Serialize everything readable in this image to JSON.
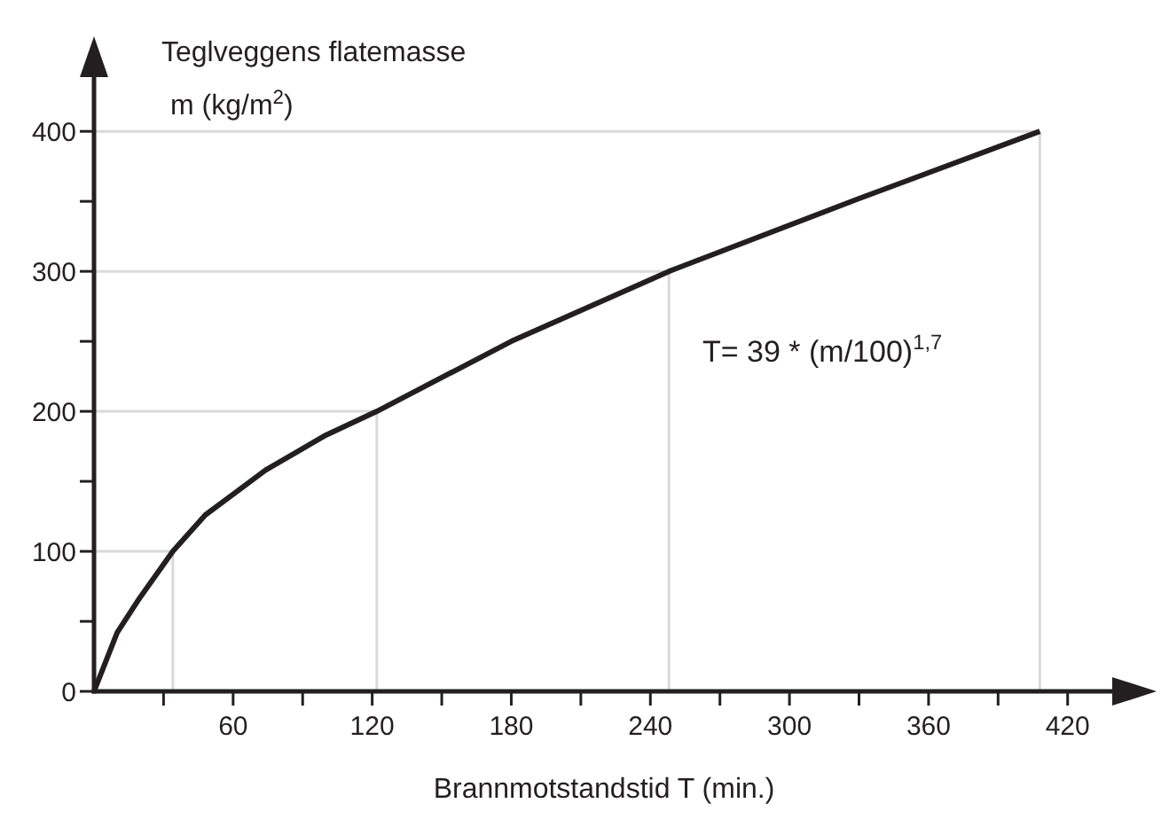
{
  "chart_data": {
    "type": "line",
    "xlabel": "Brannmotstandstid T (min.)",
    "ylabel": "Teglveggens flatemasse\nm  (kg/m$^{2}$)",
    "series": [
      {
        "color": "#231f20",
        "x": [
          0,
          10,
          19,
          34,
          48,
          74,
          100,
          122,
          180,
          248,
          330,
          408
        ],
        "values": [
          0,
          42,
          65,
          100,
          126,
          158,
          183,
          200,
          250,
          300,
          352,
          400
        ]
      },
      {
        "color": "#d9d9d9",
        "x": [
          0,
          34
        ],
        "values": [
          100,
          100
        ]
      },
      {
        "color": "#d9d9d9",
        "x": [
          0,
          122
        ],
        "values": [
          200,
          200
        ]
      },
      {
        "color": "#d9d9d9",
        "x": [
          0,
          248
        ],
        "values": [
          300,
          300
        ]
      },
      {
        "color": "#d9d9d9",
        "x": [
          0,
          408
        ],
        "values": [
          400,
          400
        ]
      },
      {
        "color": "#d9d9d9",
        "x": [
          34,
          34
        ],
        "values": [
          0,
          100
        ]
      },
      {
        "color": "#d9d9d9",
        "x": [
          122,
          122
        ],
        "values": [
          0,
          200
        ]
      },
      {
        "color": "#d9d9d9",
        "x": [
          248,
          248
        ],
        "values": [
          0,
          300
        ]
      },
      {
        "color": "#d9d9d9",
        "x": [
          408,
          408
        ],
        "values": [
          0,
          400
        ]
      }
    ],
    "marker": "none",
    "line_style": "solid",
    "xlim": [
      0,
      440
    ],
    "ylim": [
      0,
      440
    ],
    "xticks": [
      {
        "value": 30,
        "label": null
      },
      60,
      {
        "value": 90,
        "label": null
      },
      120,
      {
        "value": 150,
        "label": null
      },
      180,
      {
        "value": 210,
        "label": null
      },
      240,
      {
        "value": 270,
        "label": null
      },
      300,
      {
        "value": 330,
        "label": null
      },
      360,
      {
        "value": 390,
        "label": null
      },
      420
    ],
    "yticks": [
      0,
      {
        "value": 50,
        "label": null
      },
      100,
      {
        "value": 150,
        "label": null
      },
      200,
      {
        "value": 250,
        "label": null
      },
      300,
      {
        "value": 350,
        "label": null
      },
      400
    ],
    "annotations": [
      "T= 39 * (m/100)$^{1,7}$"
    ]
  }
}
